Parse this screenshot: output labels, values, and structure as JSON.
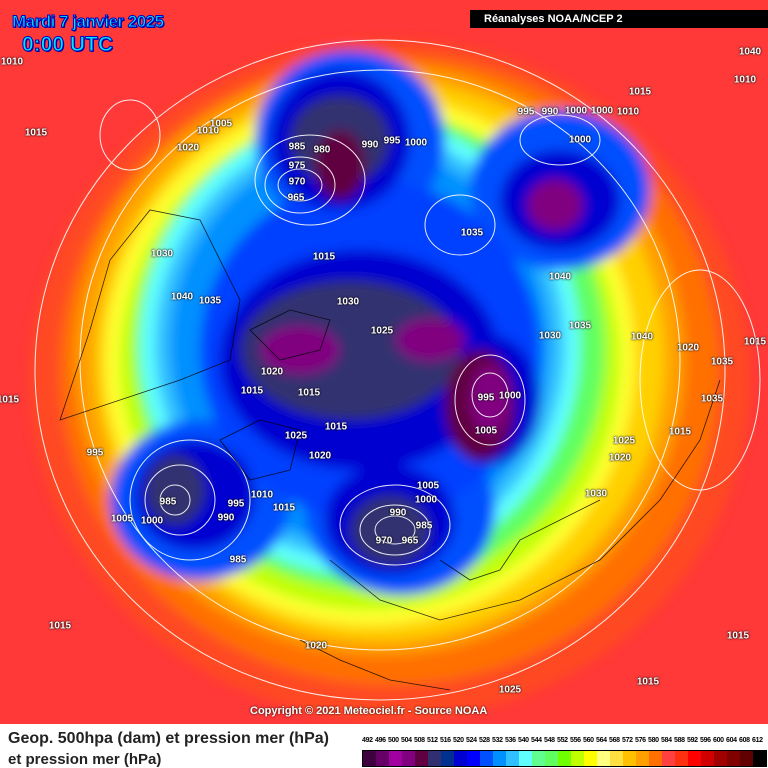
{
  "header": {
    "date": "Mardi 7 janvier 2025",
    "time": "0:00 UTC",
    "source": "Réanalyses NOAA/NCEP 2"
  },
  "footer": {
    "copyright": "Copyright © 2021 Meteociel.fr - Source NOAA"
  },
  "legend": {
    "title_line1": "Geop. 500hpa (dam) et pression mer (hPa)",
    "title_line2": "et pression mer (hPa)",
    "ticks": [
      "492",
      "496",
      "500",
      "504",
      "508",
      "512",
      "516",
      "520",
      "524",
      "528",
      "532",
      "536",
      "540",
      "544",
      "548",
      "552",
      "556",
      "560",
      "564",
      "568",
      "572",
      "576",
      "580",
      "584",
      "588",
      "592",
      "596",
      "600",
      "604",
      "608",
      "612"
    ],
    "colors": [
      "#3f003f",
      "#660066",
      "#a000a0",
      "#800080",
      "#600040",
      "#303070",
      "#003090",
      "#0000d0",
      "#0000ff",
      "#0050ff",
      "#0090ff",
      "#30c0ff",
      "#60ffff",
      "#60ff90",
      "#60ff60",
      "#70ff00",
      "#c0ff00",
      "#ffff00",
      "#ffff80",
      "#ffe040",
      "#ffc000",
      "#ffa000",
      "#ff7000",
      "#ff4040",
      "#ff3010",
      "#ff0000",
      "#d00000",
      "#a00000",
      "#800000",
      "#600000",
      "#000000"
    ]
  },
  "pressure_labels": [
    "1010",
    "1015",
    "1020",
    "1010",
    "1005",
    "985",
    "980",
    "975",
    "970",
    "965",
    "990",
    "995",
    "1000",
    "1015",
    "995",
    "990",
    "1000",
    "1000",
    "1010",
    "1015",
    "1000",
    "1035",
    "1030",
    "1040",
    "1035",
    "1040",
    "1030",
    "1025",
    "1020",
    "1015",
    "1015",
    "1040",
    "1030",
    "1035",
    "1040",
    "1020",
    "1015",
    "1035",
    "995",
    "1000",
    "1005",
    "1035",
    "1025",
    "1020",
    "1030",
    "1025",
    "1020",
    "1015",
    "1015",
    "995",
    "985",
    "995",
    "990",
    "1005",
    "1000",
    "985",
    "1010",
    "1015",
    "1005",
    "1000",
    "990",
    "985",
    "970",
    "965",
    "1015",
    "1020",
    "1025",
    "1015",
    "1015",
    "1015",
    "1010"
  ]
}
